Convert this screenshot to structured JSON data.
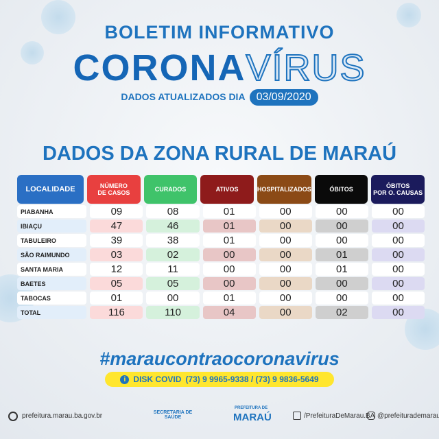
{
  "header": {
    "title": "BOLETIM INFORMATIVO",
    "word1": "CORONA",
    "word2": "VÍRUS",
    "updated_label": "DADOS ATUALIZADOS DIA",
    "updated_date": "03/09/2020"
  },
  "section_title": "DADOS DA ZONA RURAL DE MARAÚ",
  "table": {
    "columns": [
      "LOCALIDADE",
      "NÚMERO\nDE CASOS",
      "CURADOS",
      "ATIVOS",
      "HOSPITALIZADOS",
      "ÓBITOS",
      "ÓBITOS\nPOR O. CAUSAS"
    ],
    "rows": [
      [
        "PIABANHA",
        "09",
        "08",
        "01",
        "00",
        "00",
        "00"
      ],
      [
        "IBIAÇU",
        "47",
        "46",
        "01",
        "00",
        "00",
        "00"
      ],
      [
        "TABULEIRO",
        "39",
        "38",
        "01",
        "00",
        "00",
        "00"
      ],
      [
        "SÃO RAIMUNDO",
        "03",
        "02",
        "00",
        "00",
        "01",
        "00"
      ],
      [
        "SANTA MARIA",
        "12",
        "11",
        "00",
        "00",
        "01",
        "00"
      ],
      [
        "BAETES",
        "05",
        "05",
        "00",
        "00",
        "00",
        "00"
      ],
      [
        "TABOCAS",
        "01",
        "00",
        "01",
        "00",
        "00",
        "00"
      ],
      [
        "TOTAL",
        "116",
        "110",
        "04",
        "00",
        "02",
        "00"
      ]
    ]
  },
  "hashtag": "#maraucontraocoronavirus",
  "disk": {
    "label": "DISK COVID",
    "phones": "(73) 9 9965-9338 / (73) 9 9836-5649"
  },
  "footer": {
    "website": "prefeitura.marau.ba.gov.br",
    "secretaria": "SECRETARIA DE SAÚDE",
    "prefeitura": "PREFEITURA DE",
    "city": "MARAÚ",
    "facebook": "/PrefeituraDeMarau.BA",
    "instagram": "@prefeiturademarau"
  }
}
